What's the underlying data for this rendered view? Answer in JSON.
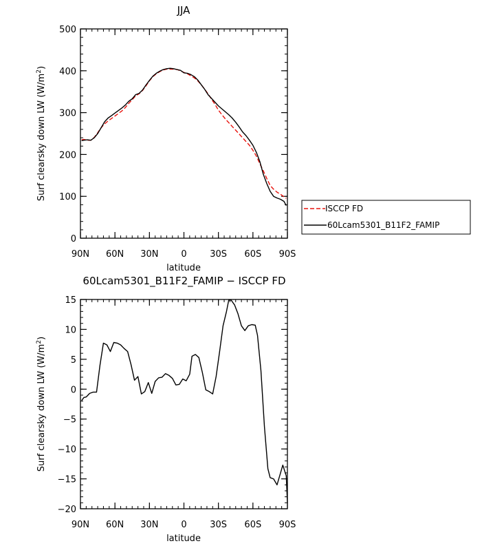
{
  "chart_data": [
    {
      "type": "line",
      "title": "JJA",
      "xlabel": "latitude",
      "ylabel": "Surf clearsky down LW (W/m",
      "ylabel_sup": "2",
      "ylabel_close": ")",
      "xlim": [
        90,
        -90
      ],
      "ylim": [
        0,
        500
      ],
      "xticks": [
        90,
        60,
        30,
        0,
        -30,
        -60,
        -90
      ],
      "xticklabels": [
        "90N",
        "60N",
        "30N",
        "0",
        "30S",
        "60S",
        "90S"
      ],
      "yticks": [
        0,
        100,
        200,
        300,
        400,
        500
      ],
      "yticklabels": [
        "0",
        "100",
        "200",
        "300",
        "400",
        "500"
      ],
      "legend": "right",
      "series": [
        {
          "name": "ISCCP FD",
          "color": "#e8120c",
          "dash": true,
          "points": [
            [
              89,
              235
            ],
            [
              87,
              236
            ],
            [
              84,
              234
            ],
            [
              81,
              234
            ],
            [
              78,
              241
            ],
            [
              75,
              252
            ],
            [
              72,
              264
            ],
            [
              69,
              273
            ],
            [
              66,
              280
            ],
            [
              63,
              286
            ],
            [
              60,
              292
            ],
            [
              57,
              298
            ],
            [
              54,
              304
            ],
            [
              51,
              312
            ],
            [
              48,
              322
            ],
            [
              45,
              331
            ],
            [
              42,
              340
            ],
            [
              39,
              345
            ],
            [
              36,
              353
            ],
            [
              33,
              364
            ],
            [
              30,
              376
            ],
            [
              27,
              386
            ],
            [
              24,
              393
            ],
            [
              21,
              398
            ],
            [
              18,
              402
            ],
            [
              15,
              404
            ],
            [
              12,
              404
            ],
            [
              9,
              404
            ],
            [
              6,
              403
            ],
            [
              3,
              400
            ],
            [
              0,
              396
            ],
            [
              -3,
              393
            ],
            [
              -6,
              388
            ],
            [
              -9,
              383
            ],
            [
              -12,
              376
            ],
            [
              -15,
              367
            ],
            [
              -18,
              356
            ],
            [
              -21,
              345
            ],
            [
              -24,
              332
            ],
            [
              -27,
              320
            ],
            [
              -30,
              306
            ],
            [
              -33,
              295
            ],
            [
              -36,
              285
            ],
            [
              -39,
              276
            ],
            [
              -42,
              267
            ],
            [
              -45,
              258
            ],
            [
              -48,
              249
            ],
            [
              -51,
              240
            ],
            [
              -54,
              231
            ],
            [
              -57,
              222
            ],
            [
              -60,
              210
            ],
            [
              -63,
              196
            ],
            [
              -66,
              178
            ],
            [
              -69,
              161
            ],
            [
              -72,
              143
            ],
            [
              -75,
              126
            ],
            [
              -78,
              117
            ],
            [
              -81,
              110
            ],
            [
              -84,
              105
            ],
            [
              -87,
              99
            ],
            [
              -89,
              95
            ]
          ]
        },
        {
          "name": "60Lcam5301_B11F2_FAMIP",
          "color": "#000000",
          "dash": false,
          "points": [
            [
              89,
              233
            ],
            [
              87,
              234
            ],
            [
              84,
              235
            ],
            [
              81,
              234
            ],
            [
              78,
              240
            ],
            [
              75,
              250
            ],
            [
              72,
              264
            ],
            [
              69,
              278
            ],
            [
              66,
              287
            ],
            [
              63,
              293
            ],
            [
              60,
              299
            ],
            [
              57,
              305
            ],
            [
              54,
              311
            ],
            [
              51,
              318
            ],
            [
              48,
              327
            ],
            [
              45,
              333
            ],
            [
              42,
              343
            ],
            [
              39,
              346
            ],
            [
              36,
              354
            ],
            [
              33,
              366
            ],
            [
              30,
              377
            ],
            [
              27,
              387
            ],
            [
              24,
              394
            ],
            [
              21,
              399
            ],
            [
              18,
              403
            ],
            [
              15,
              405
            ],
            [
              12,
              406
            ],
            [
              9,
              405
            ],
            [
              6,
              403
            ],
            [
              3,
              401
            ],
            [
              0,
              395
            ],
            [
              -3,
              394
            ],
            [
              -6,
              391
            ],
            [
              -9,
              386
            ],
            [
              -12,
              378
            ],
            [
              -15,
              367
            ],
            [
              -18,
              356
            ],
            [
              -21,
              343
            ],
            [
              -24,
              334
            ],
            [
              -27,
              325
            ],
            [
              -30,
              316
            ],
            [
              -33,
              309
            ],
            [
              -36,
              302
            ],
            [
              -39,
              295
            ],
            [
              -42,
              287
            ],
            [
              -45,
              277
            ],
            [
              -48,
              266
            ],
            [
              -51,
              254
            ],
            [
              -54,
              245
            ],
            [
              -57,
              234
            ],
            [
              -60,
              222
            ],
            [
              -63,
              205
            ],
            [
              -66,
              183
            ],
            [
              -69,
              153
            ],
            [
              -72,
              131
            ],
            [
              -75,
              112
            ],
            [
              -78,
              100
            ],
            [
              -81,
              96
            ],
            [
              -84,
              93
            ],
            [
              -87,
              88
            ],
            [
              -89,
              78
            ]
          ]
        }
      ]
    },
    {
      "type": "line",
      "title": "60Lcam5301_B11F2_FAMIP − ISCCP FD",
      "xlabel": "latitude",
      "ylabel": "Surf clearsky down LW (W/m",
      "ylabel_sup": "2",
      "ylabel_close": ")",
      "xlim": [
        90,
        -90
      ],
      "ylim": [
        -20,
        15
      ],
      "xticks": [
        90,
        60,
        30,
        0,
        -30,
        -60,
        -90
      ],
      "xticklabels": [
        "90N",
        "60N",
        "30N",
        "0",
        "30S",
        "60S",
        "90S"
      ],
      "yticks": [
        15,
        10,
        5,
        0,
        -5,
        -10,
        -15,
        -20
      ],
      "yticklabels": [
        "15",
        "10",
        "5",
        "0",
        "−5",
        "−10",
        "−15",
        "−20"
      ],
      "series": [
        {
          "color": "#000000",
          "dash": false,
          "points": [
            [
              89,
              -1.9
            ],
            [
              87,
              -1.4
            ],
            [
              85,
              -1.3
            ],
            [
              82,
              -0.7
            ],
            [
              79,
              -0.5
            ],
            [
              76,
              -0.5
            ],
            [
              73,
              4.0
            ],
            [
              70,
              7.7
            ],
            [
              67,
              7.4
            ],
            [
              64,
              6.3
            ],
            [
              61,
              7.8
            ],
            [
              58,
              7.7
            ],
            [
              55,
              7.4
            ],
            [
              52,
              6.8
            ],
            [
              49,
              6.3
            ],
            [
              46,
              4.1
            ],
            [
              43,
              1.5
            ],
            [
              40,
              2.1
            ],
            [
              37,
              -0.8
            ],
            [
              34,
              -0.4
            ],
            [
              31,
              1.1
            ],
            [
              28,
              -0.7
            ],
            [
              25,
              1.3
            ],
            [
              22,
              1.9
            ],
            [
              19,
              2.0
            ],
            [
              16,
              2.6
            ],
            [
              13,
              2.3
            ],
            [
              10,
              1.8
            ],
            [
              7,
              0.7
            ],
            [
              4,
              0.8
            ],
            [
              1,
              1.7
            ],
            [
              -2,
              1.4
            ],
            [
              -5,
              2.5
            ],
            [
              -7,
              5.5
            ],
            [
              -10,
              5.8
            ],
            [
              -13,
              5.3
            ],
            [
              -16,
              2.8
            ],
            [
              -19,
              -0.1
            ],
            [
              -22,
              -0.4
            ],
            [
              -25,
              -0.8
            ],
            [
              -28,
              2.1
            ],
            [
              -31,
              6.2
            ],
            [
              -34,
              10.6
            ],
            [
              -37,
              13.0
            ],
            [
              -39,
              14.9
            ],
            [
              -41,
              14.9
            ],
            [
              -44,
              14.1
            ],
            [
              -47,
              12.6
            ],
            [
              -50,
              10.6
            ],
            [
              -53,
              9.8
            ],
            [
              -56,
              10.6
            ],
            [
              -59,
              10.8
            ],
            [
              -62,
              10.7
            ],
            [
              -64,
              9.0
            ],
            [
              -67,
              3.1
            ],
            [
              -70,
              -6.3
            ],
            [
              -73,
              -13.3
            ],
            [
              -75,
              -14.8
            ],
            [
              -78,
              -15.0
            ],
            [
              -81,
              -16.0
            ],
            [
              -84,
              -14.0
            ],
            [
              -86,
              -12.7
            ],
            [
              -89,
              -14.5
            ],
            [
              -90,
              -19.0
            ]
          ]
        }
      ]
    }
  ]
}
